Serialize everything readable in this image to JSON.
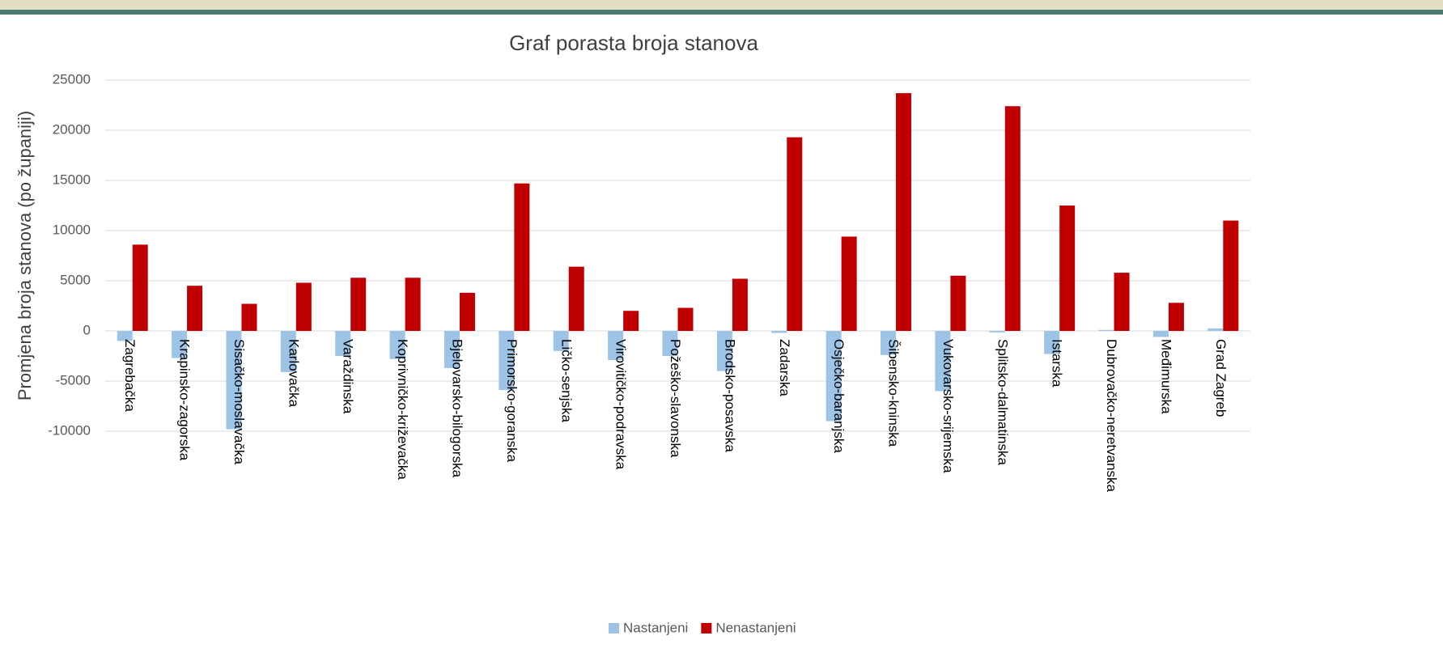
{
  "chart_data": {
    "type": "bar",
    "title": "Graf porasta broja stanova",
    "y_label": "Promjena broja stanova (po županiji)",
    "categories": [
      "Zagrebačka",
      "Krapinsko-zagorska",
      "Sisačko-moslavačka",
      "Karlovačka",
      "Varaždinska",
      "Koprivničko-križevačka",
      "Bjelovarsko-bilogorska",
      "Primorsko-goranska",
      "Ličko-senjska",
      "Virovitičko-podravska",
      "Požeško-slavonska",
      "Brodsko-posavska",
      "Zadarska",
      "Osječko-baranjska",
      "Šibensko-kninska",
      "Vukovarsko-srijemska",
      "Splitsko-dalmatinska",
      "Istarska",
      "Dubrovačko-neretvanska",
      "Međimurska",
      "Grad Zagreb"
    ],
    "series": [
      {
        "name": "Nastanjeni",
        "color": "#9dc3e6",
        "values": [
          -1000,
          -2700,
          -9800,
          -4100,
          -2500,
          -2800,
          -3700,
          -5900,
          -2000,
          -2900,
          -2500,
          -4000,
          -200,
          -9000,
          -2400,
          -6000,
          -150,
          -2300,
          100,
          -600,
          250
        ]
      },
      {
        "name": "Nenastanjeni",
        "color": "#c00000",
        "values": [
          8600,
          4500,
          2700,
          4800,
          5300,
          5300,
          3800,
          14700,
          6400,
          2000,
          2300,
          5200,
          19300,
          9400,
          23700,
          5500,
          22400,
          12500,
          5800,
          2800,
          11000
        ]
      }
    ],
    "ylim": [
      -10000,
      25000
    ],
    "yticks": [
      -10000,
      -5000,
      0,
      5000,
      10000,
      15000,
      20000,
      25000
    ],
    "grid": true,
    "legend": "bottom"
  }
}
